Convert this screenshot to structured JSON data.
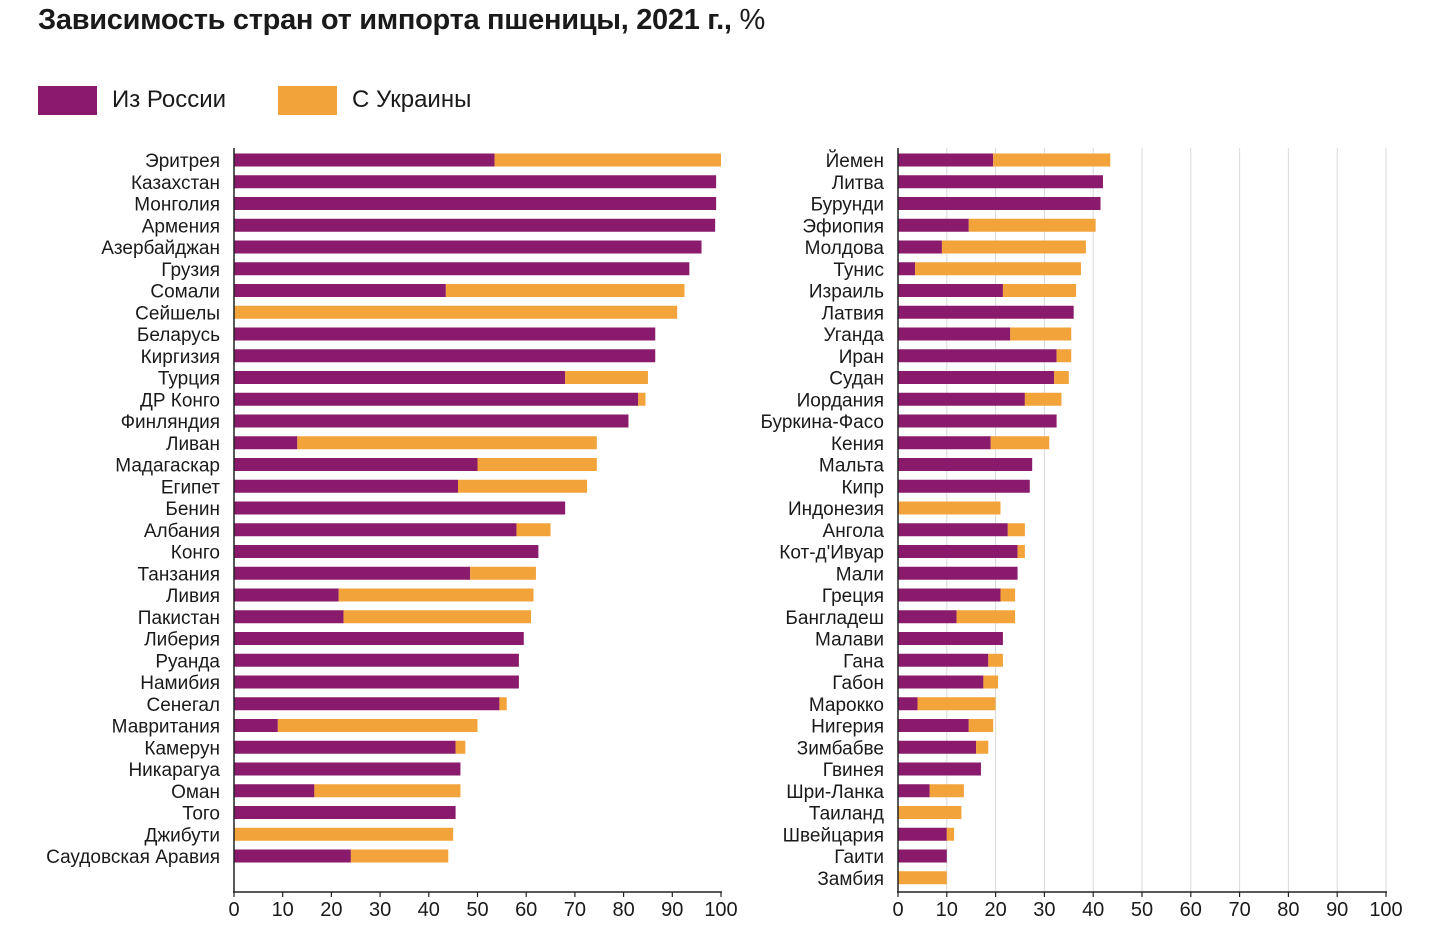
{
  "title": "Зависимость стран от импорта пшеницы, 2021 г.,",
  "title_unit": "%",
  "colors": {
    "russia": "#8a1a6b",
    "ukraine": "#f2a33a",
    "grid": "#d9d9d9",
    "axis": "#222222"
  },
  "chart_data": [
    {
      "type": "bar",
      "orientation": "horizontal",
      "stacked": true,
      "xlim": [
        0,
        100
      ],
      "x_ticks": [
        "0",
        "10",
        "20",
        "30",
        "40",
        "50",
        "60",
        "70",
        "80",
        "90",
        "100"
      ],
      "legend": "top-left",
      "categories": [
        "Эритрея",
        "Казахстан",
        "Монголия",
        "Армения",
        "Азербайджан",
        "Грузия",
        "Сомали",
        "Сейшелы",
        "Беларусь",
        "Киргизия",
        "Турция",
        "ДР Конго",
        "Финляндия",
        "Ливан",
        "Мадагаскар",
        "Египет",
        "Бенин",
        "Албания",
        "Конго",
        "Танзания",
        "Ливия",
        "Пакистан",
        "Либерия",
        "Руанда",
        "Намибия",
        "Сенегал",
        "Мавритания",
        "Камерун",
        "Никарагуа",
        "Оман",
        "Того",
        "Джибути",
        "Саудовская Аравия"
      ],
      "series": [
        {
          "name": "Из России",
          "values": [
            53.5,
            99,
            99,
            98.8,
            96,
            93.5,
            43.5,
            0,
            86.5,
            86.5,
            68,
            83,
            81,
            13,
            50,
            46,
            68,
            58,
            62.5,
            48.5,
            21.5,
            22.5,
            59.5,
            58.5,
            58.5,
            54.5,
            9,
            45.5,
            46.5,
            16.5,
            45.5,
            0,
            24
          ]
        },
        {
          "name": "С Украины",
          "values": [
            46.5,
            0,
            0,
            0,
            0,
            0,
            49,
            91,
            0,
            0,
            17,
            1.5,
            0,
            61.5,
            24.5,
            26.5,
            0,
            7,
            0,
            13.5,
            40,
            38.5,
            0,
            0,
            0,
            1.5,
            41,
            2,
            0,
            30,
            0,
            45,
            20
          ]
        }
      ]
    },
    {
      "type": "bar",
      "orientation": "horizontal",
      "stacked": true,
      "xlim": [
        0,
        100
      ],
      "x_ticks": [
        "0",
        "10",
        "20",
        "30",
        "40",
        "50",
        "60",
        "70",
        "80",
        "90",
        "100"
      ],
      "categories": [
        "Йемен",
        "Литва",
        "Бурунди",
        "Эфиопия",
        "Молдова",
        "Тунис",
        "Израиль",
        "Латвия",
        "Уганда",
        "Иран",
        "Судан",
        "Иордания",
        "Буркина-Фасо",
        "Кения",
        "Мальта",
        "Кипр",
        "Индонезия",
        "Ангола",
        "Кот-д'Ивуар",
        "Мали",
        "Греция",
        "Бангладеш",
        "Малави",
        "Гана",
        "Габон",
        "Марокко",
        "Нигерия",
        "Зимбабве",
        "Гвинея",
        "Шри-Ланка",
        "Таиланд",
        "Швейцария",
        "Гаити",
        "Замбия"
      ],
      "series": [
        {
          "name": "Из России",
          "values": [
            19.5,
            42,
            41.5,
            14.5,
            9,
            3.5,
            21.5,
            36,
            23,
            32.5,
            32,
            26,
            32.5,
            19,
            27.5,
            27,
            0,
            22.5,
            24.5,
            24.5,
            21,
            12,
            21.5,
            18.5,
            17.5,
            4,
            14.5,
            16,
            17,
            6.5,
            0,
            10,
            10,
            0
          ]
        },
        {
          "name": "С Украины",
          "values": [
            24,
            0,
            0,
            26,
            29.5,
            34,
            15,
            0,
            12.5,
            3,
            3,
            7.5,
            0,
            12,
            0,
            0,
            21,
            3.5,
            1.5,
            0,
            3,
            12,
            0,
            3,
            3,
            16,
            5,
            2.5,
            0,
            7,
            13,
            1.5,
            0,
            10
          ]
        }
      ]
    }
  ]
}
